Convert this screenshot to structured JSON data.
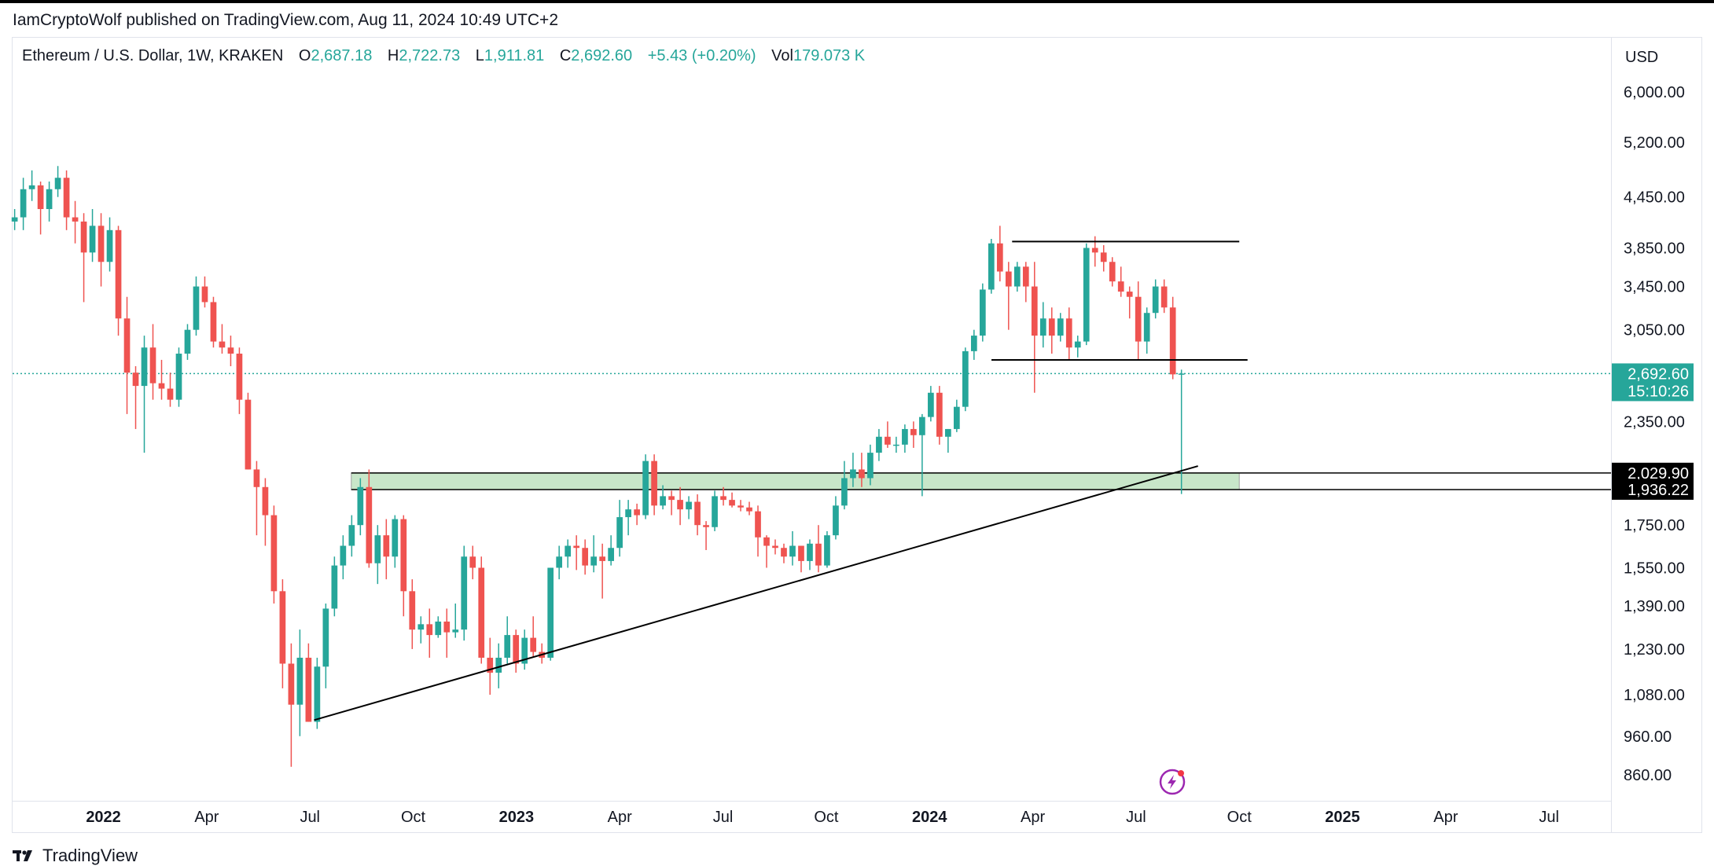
{
  "header": {
    "published_by": "IamCryptoWolf published on TradingView.com, Aug 11, 2024 10:49 UTC+2"
  },
  "legend": {
    "symbol": "Ethereum / U.S. Dollar, 1W, KRAKEN",
    "open_label": "O",
    "open_value": "2,687.18",
    "high_label": "H",
    "high_value": "2,722.73",
    "low_label": "L",
    "low_value": "1,911.81",
    "close_label": "C",
    "close_value": "2,692.60",
    "change_value": "+5.43 (+0.20%)",
    "vol_label": "Vol",
    "vol_value": "179.073 K"
  },
  "price_axis": {
    "currency": "USD"
  },
  "footer": {
    "brand": "TradingView"
  },
  "colors": {
    "up": "#26a69a",
    "down": "#ef5350",
    "zone": "#c8e6c9",
    "label_dark": "#000000"
  },
  "chart_data": {
    "type": "candlestick",
    "symbol": "ETHUSD",
    "timeframe": "1W",
    "exchange": "KRAKEN",
    "y_scale": "log",
    "y_ticks": [
      "6,000.00",
      "5,200.00",
      "4,450.00",
      "3,850.00",
      "3,450.00",
      "3,050.00",
      "2,350.00",
      "1,750.00",
      "1,550.00",
      "1,390.00",
      "1,230.00",
      "1,080.00",
      "960.00",
      "860.00"
    ],
    "y_tick_values": [
      6000,
      5200,
      4450,
      3850,
      3450,
      3050,
      2350,
      1750,
      1550,
      1390,
      1230,
      1080,
      960,
      860
    ],
    "x_ticks": [
      {
        "label": "2022",
        "t": 2022.0,
        "year": true
      },
      {
        "label": "Apr",
        "t": 2022.25,
        "year": false
      },
      {
        "label": "Jul",
        "t": 2022.5,
        "year": false
      },
      {
        "label": "Oct",
        "t": 2022.75,
        "year": false
      },
      {
        "label": "2023",
        "t": 2023.0,
        "year": true
      },
      {
        "label": "Apr",
        "t": 2023.25,
        "year": false
      },
      {
        "label": "Jul",
        "t": 2023.5,
        "year": false
      },
      {
        "label": "Oct",
        "t": 2023.75,
        "year": false
      },
      {
        "label": "2024",
        "t": 2024.0,
        "year": true
      },
      {
        "label": "Apr",
        "t": 2024.25,
        "year": false
      },
      {
        "label": "Jul",
        "t": 2024.5,
        "year": false
      },
      {
        "label": "Oct",
        "t": 2024.75,
        "year": false
      },
      {
        "label": "2025",
        "t": 2025.0,
        "year": true
      },
      {
        "label": "Apr",
        "t": 2025.25,
        "year": false
      },
      {
        "label": "Jul",
        "t": 2025.5,
        "year": false
      }
    ],
    "last_price": {
      "value": 2692.6,
      "label": "2,692.60",
      "countdown": "15:10:26"
    },
    "levels": [
      {
        "value": 2029.9,
        "label": "2,029.90"
      },
      {
        "value": 1936.22,
        "label": "1,936.22"
      }
    ],
    "zone": {
      "from": 2022.6,
      "to": 2024.75,
      "top": 2029.9,
      "bottom": 1936.22
    },
    "trendline": {
      "t1": 2022.51,
      "p1": 1005,
      "t2": 2024.65,
      "p2": 2070
    },
    "resistance": {
      "t1": 2024.2,
      "t2": 2024.75,
      "price": 3920
    },
    "support": {
      "t1": 2024.15,
      "t2": 2024.77,
      "price": 2800
    },
    "candles": [
      [
        4150,
        4300,
        4050,
        4200
      ],
      [
        4200,
        4700,
        4050,
        4550
      ],
      [
        4550,
        4800,
        4400,
        4600
      ],
      [
        4600,
        4650,
        4000,
        4300
      ],
      [
        4300,
        4650,
        4150,
        4550
      ],
      [
        4550,
        4860,
        4450,
        4700
      ],
      [
        4700,
        4800,
        4050,
        4200
      ],
      [
        4200,
        4400,
        3900,
        4150
      ],
      [
        4150,
        4250,
        3300,
        3800
      ],
      [
        3800,
        4300,
        3700,
        4100
      ],
      [
        4100,
        4250,
        3450,
        3700
      ],
      [
        3700,
        4200,
        3600,
        4050
      ],
      [
        4050,
        4100,
        3000,
        3150
      ],
      [
        3150,
        3350,
        2400,
        2700
      ],
      [
        2700,
        2750,
        2300,
        2600
      ],
      [
        2600,
        3000,
        2150,
        2900
      ],
      [
        2900,
        3100,
        2500,
        2620
      ],
      [
        2620,
        2800,
        2500,
        2580
      ],
      [
        2580,
        2700,
        2450,
        2500
      ],
      [
        2500,
        2900,
        2450,
        2850
      ],
      [
        2850,
        3100,
        2800,
        3050
      ],
      [
        3050,
        3550,
        3000,
        3450
      ],
      [
        3450,
        3550,
        3250,
        3300
      ],
      [
        3300,
        3350,
        2900,
        2950
      ],
      [
        2950,
        3100,
        2850,
        2900
      ],
      [
        2900,
        3000,
        2750,
        2850
      ],
      [
        2850,
        2900,
        2400,
        2500
      ],
      [
        2500,
        2550,
        2050,
        2050
      ],
      [
        2050,
        2100,
        1700,
        1950
      ],
      [
        1950,
        2000,
        1650,
        1800
      ],
      [
        1800,
        1850,
        1400,
        1450
      ],
      [
        1450,
        1500,
        1100,
        1180
      ],
      [
        1180,
        1250,
        880,
        1050
      ],
      [
        1050,
        1300,
        960,
        1200
      ],
      [
        1200,
        1250,
        1000,
        1000
      ],
      [
        1000,
        1200,
        980,
        1170
      ],
      [
        1170,
        1400,
        1100,
        1380
      ],
      [
        1380,
        1600,
        1350,
        1560
      ],
      [
        1560,
        1700,
        1500,
        1650
      ],
      [
        1650,
        1800,
        1600,
        1750
      ],
      [
        1750,
        2000,
        1700,
        1950
      ],
      [
        1950,
        2050,
        1550,
        1570
      ],
      [
        1570,
        1750,
        1480,
        1700
      ],
      [
        1700,
        1780,
        1500,
        1600
      ],
      [
        1600,
        1800,
        1550,
        1780
      ],
      [
        1780,
        1800,
        1350,
        1450
      ],
      [
        1450,
        1500,
        1230,
        1300
      ],
      [
        1300,
        1350,
        1250,
        1320
      ],
      [
        1320,
        1380,
        1200,
        1280
      ],
      [
        1280,
        1350,
        1270,
        1330
      ],
      [
        1330,
        1380,
        1200,
        1290
      ],
      [
        1290,
        1400,
        1270,
        1300
      ],
      [
        1300,
        1650,
        1260,
        1600
      ],
      [
        1600,
        1650,
        1500,
        1550
      ],
      [
        1550,
        1600,
        1180,
        1200
      ],
      [
        1200,
        1270,
        1080,
        1150
      ],
      [
        1150,
        1250,
        1100,
        1200
      ],
      [
        1200,
        1350,
        1180,
        1280
      ],
      [
        1280,
        1300,
        1150,
        1180
      ],
      [
        1180,
        1300,
        1160,
        1270
      ],
      [
        1270,
        1350,
        1200,
        1220
      ],
      [
        1220,
        1250,
        1180,
        1200
      ],
      [
        1200,
        1550,
        1190,
        1550
      ],
      [
        1550,
        1650,
        1500,
        1600
      ],
      [
        1600,
        1680,
        1550,
        1650
      ],
      [
        1650,
        1700,
        1540,
        1640
      ],
      [
        1640,
        1680,
        1520,
        1560
      ],
      [
        1560,
        1700,
        1530,
        1600
      ],
      [
        1600,
        1660,
        1420,
        1580
      ],
      [
        1580,
        1700,
        1560,
        1640
      ],
      [
        1640,
        1880,
        1600,
        1790
      ],
      [
        1790,
        1880,
        1700,
        1830
      ],
      [
        1830,
        1860,
        1750,
        1800
      ],
      [
        1800,
        2140,
        1780,
        2100
      ],
      [
        2100,
        2140,
        1800,
        1850
      ],
      [
        1850,
        1960,
        1830,
        1900
      ],
      [
        1900,
        1930,
        1800,
        1880
      ],
      [
        1880,
        1950,
        1750,
        1830
      ],
      [
        1830,
        1900,
        1780,
        1870
      ],
      [
        1870,
        1910,
        1700,
        1750
      ],
      [
        1750,
        1770,
        1630,
        1740
      ],
      [
        1740,
        1930,
        1720,
        1900
      ],
      [
        1900,
        1950,
        1850,
        1880
      ],
      [
        1880,
        1920,
        1840,
        1850
      ],
      [
        1850,
        1880,
        1820,
        1840
      ],
      [
        1840,
        1870,
        1800,
        1820
      ],
      [
        1820,
        1850,
        1600,
        1690
      ],
      [
        1690,
        1700,
        1550,
        1650
      ],
      [
        1650,
        1680,
        1610,
        1640
      ],
      [
        1640,
        1660,
        1570,
        1600
      ],
      [
        1600,
        1720,
        1560,
        1650
      ],
      [
        1650,
        1650,
        1530,
        1580
      ],
      [
        1580,
        1680,
        1540,
        1660
      ],
      [
        1660,
        1750,
        1530,
        1560
      ],
      [
        1560,
        1720,
        1550,
        1700
      ],
      [
        1700,
        1900,
        1680,
        1850
      ],
      [
        1850,
        2100,
        1830,
        2000
      ],
      [
        2000,
        2150,
        1950,
        2050
      ],
      [
        2050,
        2150,
        1950,
        2000
      ],
      [
        2000,
        2200,
        1960,
        2150
      ],
      [
        2150,
        2300,
        2100,
        2250
      ],
      [
        2250,
        2350,
        2180,
        2200
      ],
      [
        2200,
        2250,
        2150,
        2200
      ],
      [
        2200,
        2330,
        2150,
        2300
      ],
      [
        2300,
        2350,
        2180,
        2260
      ],
      [
        2260,
        2400,
        1900,
        2380
      ],
      [
        2380,
        2600,
        2350,
        2550
      ],
      [
        2550,
        2600,
        2200,
        2250
      ],
      [
        2250,
        2300,
        2150,
        2300
      ],
      [
        2300,
        2500,
        2280,
        2450
      ],
      [
        2450,
        2900,
        2420,
        2870
      ],
      [
        2870,
        3050,
        2800,
        3000
      ],
      [
        3000,
        3480,
        2950,
        3420
      ],
      [
        3420,
        3950,
        3380,
        3900
      ],
      [
        3900,
        4100,
        3500,
        3600
      ],
      [
        3600,
        3700,
        3050,
        3450
      ],
      [
        3450,
        3700,
        3400,
        3650
      ],
      [
        3650,
        3700,
        3300,
        3450
      ],
      [
        3450,
        3700,
        2550,
        3000
      ],
      [
        3000,
        3300,
        2900,
        3150
      ],
      [
        3150,
        3250,
        2850,
        3000
      ],
      [
        3000,
        3200,
        2950,
        3150
      ],
      [
        3150,
        3250,
        2800,
        2900
      ],
      [
        2900,
        3000,
        2820,
        2950
      ],
      [
        2950,
        3900,
        2920,
        3850
      ],
      [
        3850,
        3980,
        3650,
        3800
      ],
      [
        3800,
        3880,
        3600,
        3700
      ],
      [
        3700,
        3750,
        3450,
        3500
      ],
      [
        3500,
        3650,
        3350,
        3400
      ],
      [
        3400,
        3450,
        3150,
        3350
      ],
      [
        3350,
        3500,
        2800,
        2950
      ],
      [
        2950,
        3250,
        2850,
        3200
      ],
      [
        3200,
        3520,
        3150,
        3450
      ],
      [
        3450,
        3520,
        3200,
        3250
      ],
      [
        3250,
        3350,
        2650,
        2687
      ],
      [
        2687,
        2723,
        1912,
        2693
      ]
    ]
  }
}
